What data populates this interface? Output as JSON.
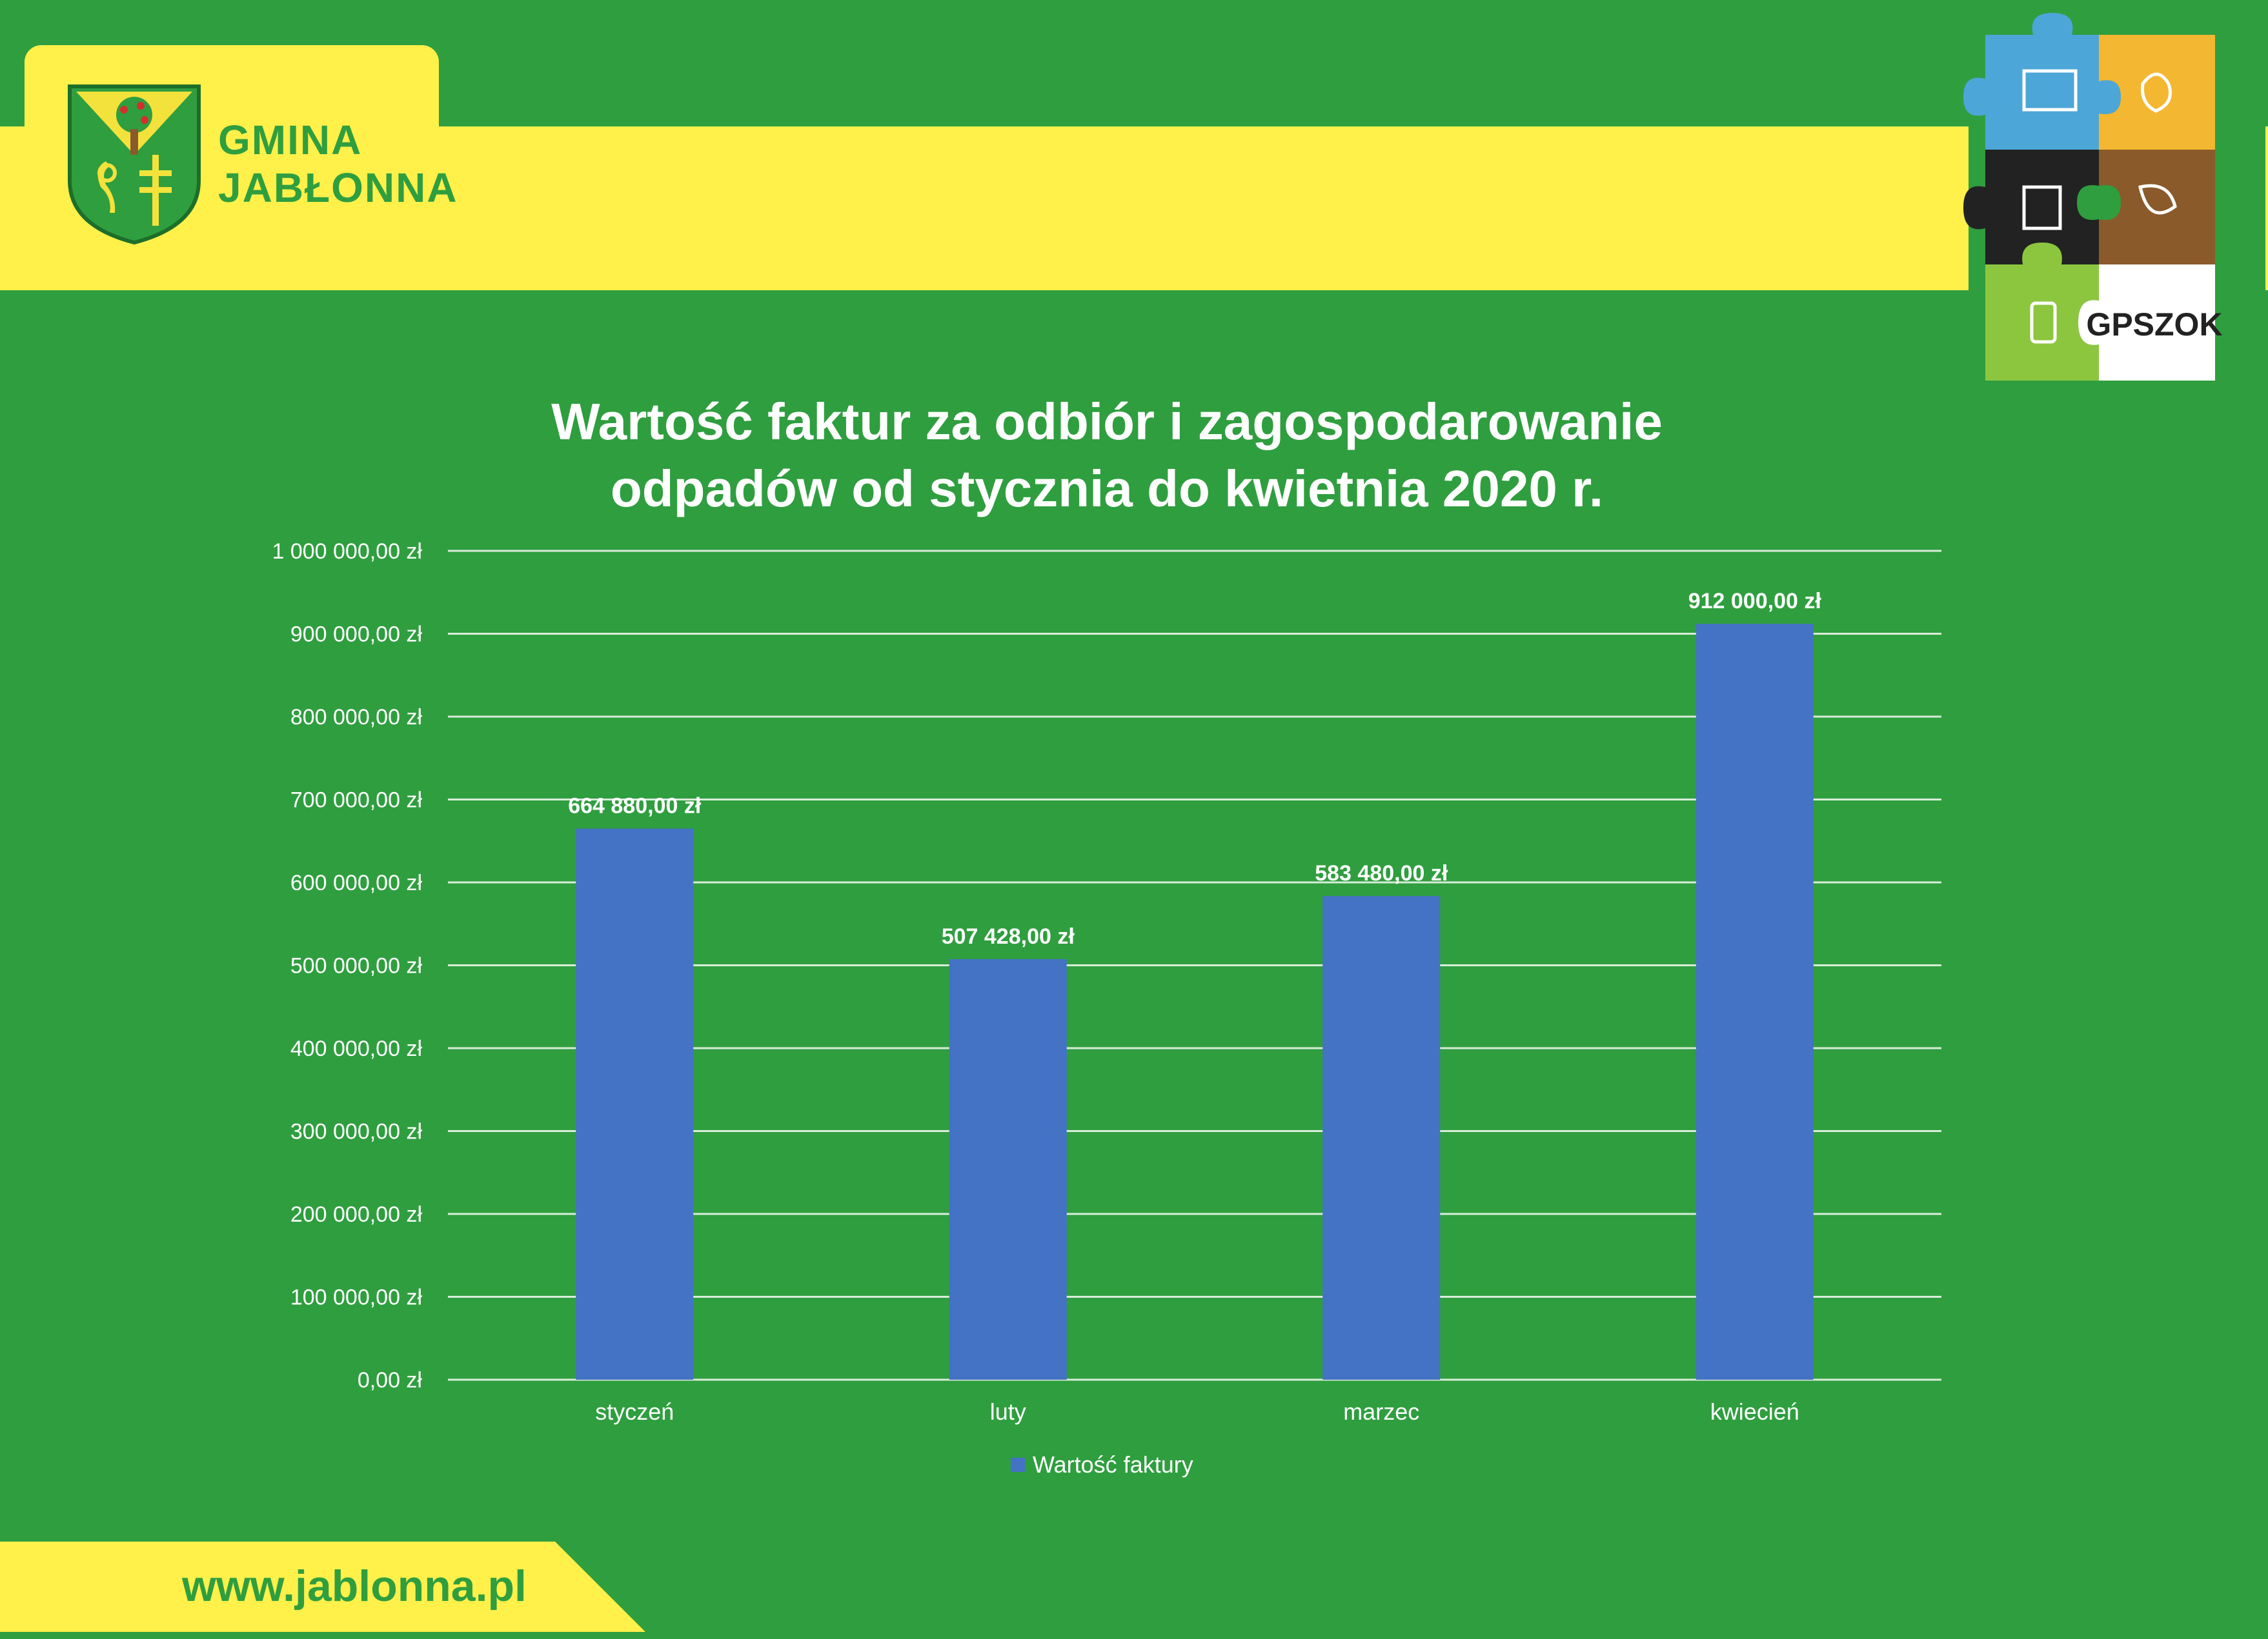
{
  "header": {
    "logo_line1": "GMINA",
    "logo_line2": "JABŁONNA",
    "gpszok_label": "GPSZOK"
  },
  "footer": {
    "url": "www.jablonna.pl"
  },
  "colors": {
    "background": "#2f9e3f",
    "band": "#fff04a",
    "bar": "#4472c4",
    "text": "#ffffff"
  },
  "chart_data": {
    "type": "bar",
    "title_line1": "Wartość faktur za odbiór i zagospodarowanie",
    "title_line2": "odpadów  od stycznia do kwietnia 2020 r.",
    "categories": [
      "styczeń",
      "luty",
      "marzec",
      "kwiecień"
    ],
    "series": [
      {
        "name": "Wartość faktury",
        "values": [
          664880,
          507428,
          583480,
          912000
        ],
        "labels": [
          "664 880,00 zł",
          "507 428,00 zł",
          "583 480,00 zł",
          "912 000,00 zł"
        ]
      }
    ],
    "ylim": [
      0,
      1000000
    ],
    "yticks": [
      0,
      100000,
      200000,
      300000,
      400000,
      500000,
      600000,
      700000,
      800000,
      900000,
      1000000
    ],
    "ytick_labels": [
      "0,00 zł",
      "100 000,00 zł",
      "200 000,00 zł",
      "300 000,00 zł",
      "400 000,00 zł",
      "500 000,00 zł",
      "600 000,00 zł",
      "700 000,00 zł",
      "800 000,00 zł",
      "900 000,00 zł",
      "1 000 000,00 zł"
    ],
    "grid": true,
    "legend": "bottom"
  }
}
